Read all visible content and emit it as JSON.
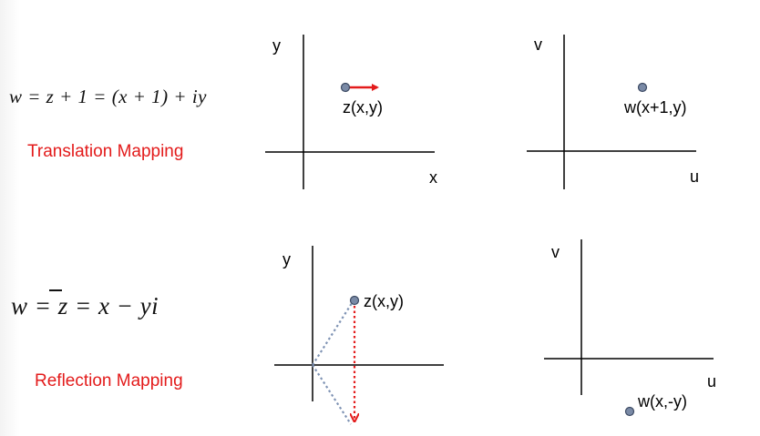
{
  "mappings": [
    {
      "formula": "w = z + 1 = (x + 1) + iy",
      "name": "Translation Mapping"
    },
    {
      "formula_lhs": "w = ",
      "formula_conj": "z",
      "formula_rhs": " = x − yi",
      "name": "Reflection  Mapping"
    }
  ],
  "panels": {
    "translation_z": {
      "x_axis": "x",
      "y_axis": "y",
      "point": "z(x,y)"
    },
    "translation_w": {
      "x_axis": "u",
      "y_axis": "v",
      "point": "w(x+1,y)"
    },
    "reflection_z": {
      "y_axis": "y",
      "point": "z(x,y)"
    },
    "reflection_w": {
      "x_axis": "u",
      "y_axis": "v",
      "point": "w(x,-y)"
    }
  },
  "colors": {
    "arrow": "#e31b1b",
    "caption": "#e31b1b",
    "dotted_line": "#7f93b4",
    "point_fill": "#7a8aa6",
    "point_stroke": "#3c4a63"
  }
}
